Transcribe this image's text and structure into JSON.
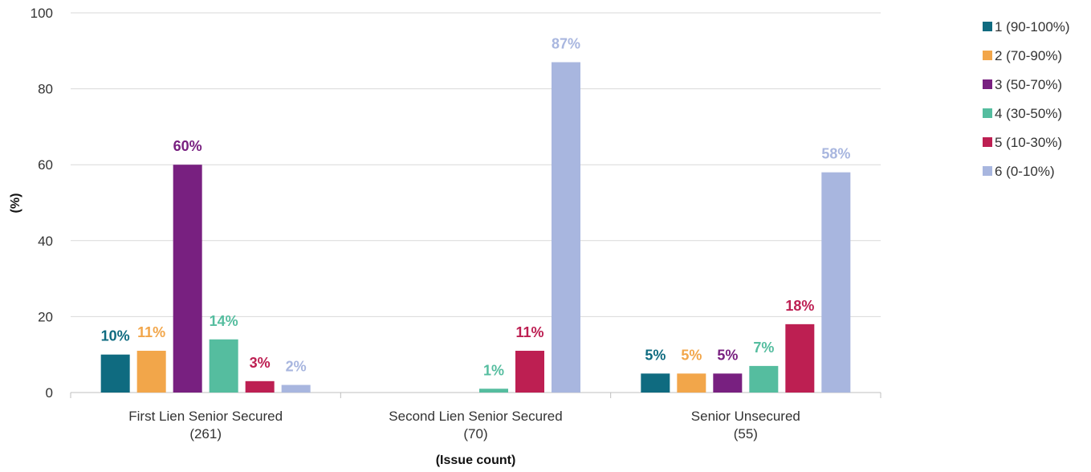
{
  "chart_data": {
    "type": "bar",
    "categories": [
      [
        "First Lien Senior Secured",
        "(261)"
      ],
      [
        "Second Lien Senior Secured",
        "(70)"
      ],
      [
        "Senior Unsecured",
        "(55)"
      ]
    ],
    "xlabel": "(Issue count)",
    "ylabel": "(%)",
    "ylim": [
      0,
      100
    ],
    "yticks": [
      0,
      20,
      40,
      60,
      80,
      100
    ],
    "grid": true,
    "legend_position": "top-right",
    "series": [
      {
        "name": "1 (90-100%)",
        "color": "#0f6b80",
        "values": [
          10,
          null,
          5
        ],
        "labels": [
          "10%",
          "",
          "5%"
        ]
      },
      {
        "name": "2 (70-90%)",
        "color": "#f2a64a",
        "values": [
          11,
          null,
          5
        ],
        "labels": [
          "11%",
          "",
          "5%"
        ]
      },
      {
        "name": "3 (50-70%)",
        "color": "#782080",
        "values": [
          60,
          null,
          5
        ],
        "labels": [
          "60%",
          "",
          "5%"
        ]
      },
      {
        "name": "4 (30-50%)",
        "color": "#55bd9f",
        "values": [
          14,
          1,
          7
        ],
        "labels": [
          "14%",
          "1%",
          "7%"
        ]
      },
      {
        "name": "5 (10-30%)",
        "color": "#bd1f52",
        "values": [
          3,
          11,
          18
        ],
        "labels": [
          "3%",
          "11%",
          "18%"
        ]
      },
      {
        "name": "6 (0-10%)",
        "color": "#a8b6df",
        "values": [
          2,
          87,
          58
        ],
        "labels": [
          "2%",
          "87%",
          "58%"
        ]
      }
    ]
  }
}
